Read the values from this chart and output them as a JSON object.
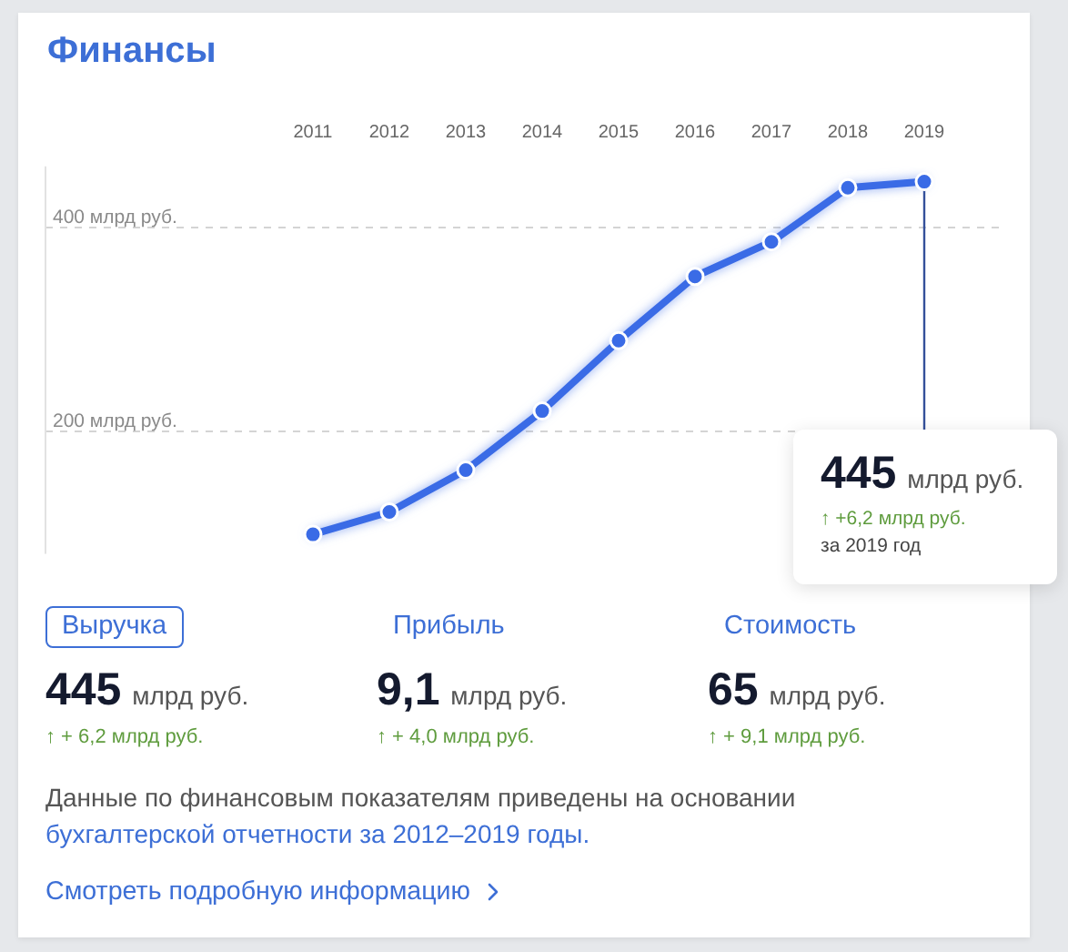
{
  "chart_data": [
    {
      "type": "line",
      "title": "Финансы",
      "x": [
        2011,
        2012,
        2013,
        2014,
        2015,
        2016,
        2017,
        2018,
        2019
      ],
      "xlim": [
        2007.5,
        2020
      ],
      "xticks": [
        2011,
        2012,
        2013,
        2014,
        2015,
        2016,
        2017,
        2018,
        2019
      ],
      "series": [
        {
          "color": "#3a6be6",
          "values": [
            99,
            121,
            162,
            220,
            289,
            352,
            386,
            439,
            445
          ]
        }
      ],
      "ylim": [
        80,
        460
      ],
      "yticks": [
        {
          "value": 200,
          "label": "200 млрд руб."
        },
        {
          "value": 400,
          "label": "400 млрд руб."
        }
      ],
      "grid": "y",
      "marker": "circle",
      "line_style": "solid",
      "ref_lines": [
        {
          "axis": "x",
          "value": 2019,
          "color": "#34509a"
        }
      ],
      "annotations": [
        "445 млрд руб.",
        "↑ +6,2 млрд руб.",
        "за 2019 год"
      ]
    },
    {
      "type": "other",
      "categories": [
        "Выручка",
        "Прибыль",
        "Стоимость"
      ],
      "annotations": [
        "445 млрд руб.",
        "9,1 млрд руб.",
        "65 млрд руб.",
        "↑ + 6,2 млрд руб.",
        "↑ + 4,0 млрд руб.",
        "↑ + 9,1 млрд руб.",
        "Данные по финансовым показателям приведены на основании",
        "бухгалтерской отчетности за 2012–2019 годы.",
        "Смотреть подробную информацию"
      ]
    }
  ]
}
